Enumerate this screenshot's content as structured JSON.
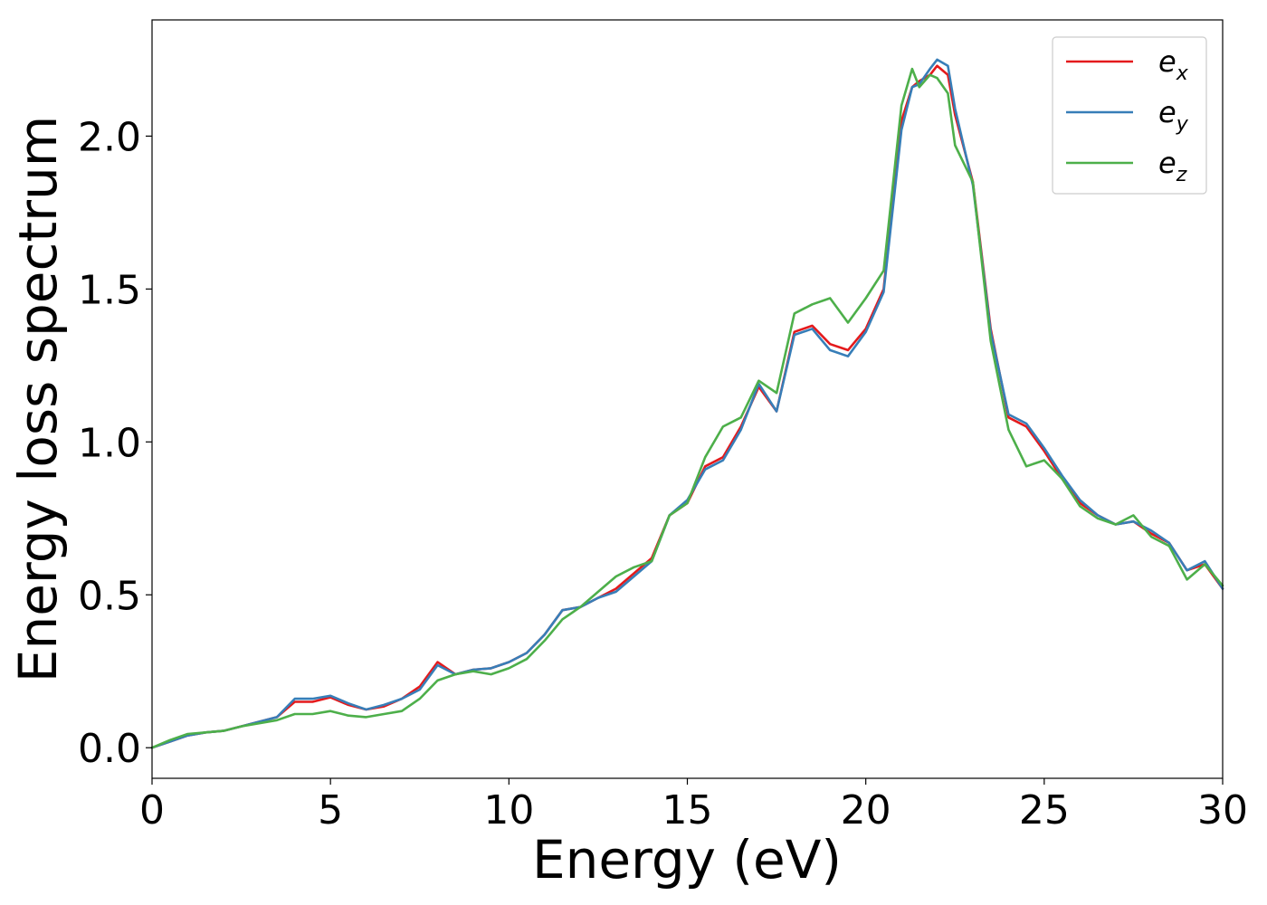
{
  "chart_data": {
    "type": "line",
    "title": "",
    "xlabel": "Energy (eV)",
    "ylabel": "Energy loss spectrum",
    "xlim": [
      0,
      30
    ],
    "ylim": [
      -0.1,
      2.38
    ],
    "xticks": [
      0,
      5,
      10,
      15,
      20,
      25,
      30
    ],
    "xtick_labels": [
      "0",
      "5",
      "10",
      "15",
      "20",
      "25",
      "30"
    ],
    "yticks": [
      0.0,
      0.5,
      1.0,
      1.5,
      2.0
    ],
    "ytick_labels": [
      "0.0",
      "0.5",
      "1.0",
      "1.5",
      "2.0"
    ],
    "grid": false,
    "legend_position": "top-right",
    "x": [
      0,
      0.5,
      1,
      1.5,
      2,
      2.5,
      3,
      3.5,
      4,
      4.5,
      5,
      5.5,
      6,
      6.5,
      7,
      7.5,
      8,
      8.5,
      9,
      9.5,
      10,
      10.5,
      11,
      11.5,
      12,
      12.5,
      13,
      13.5,
      14,
      14.5,
      15,
      15.5,
      16,
      16.5,
      17,
      17.5,
      18,
      18.5,
      19,
      19.5,
      20,
      20.5,
      21,
      21.3,
      21.5,
      21.8,
      22,
      22.3,
      22.5,
      23,
      23.5,
      24,
      24.5,
      25,
      25.5,
      26,
      26.5,
      27,
      27.5,
      28,
      28.5,
      29,
      29.5,
      30
    ],
    "series": [
      {
        "name": "e",
        "subscript": "x",
        "color": "#e41a1c",
        "values": [
          0.0,
          0.02,
          0.04,
          0.05,
          0.055,
          0.07,
          0.085,
          0.1,
          0.15,
          0.15,
          0.165,
          0.14,
          0.125,
          0.135,
          0.16,
          0.2,
          0.28,
          0.24,
          0.255,
          0.26,
          0.28,
          0.31,
          0.37,
          0.45,
          0.46,
          0.49,
          0.52,
          0.57,
          0.62,
          0.76,
          0.8,
          0.92,
          0.95,
          1.05,
          1.18,
          1.1,
          1.36,
          1.38,
          1.32,
          1.3,
          1.37,
          1.5,
          2.05,
          2.16,
          2.18,
          2.2,
          2.23,
          2.2,
          2.07,
          1.85,
          1.37,
          1.08,
          1.05,
          0.97,
          0.88,
          0.8,
          0.76,
          0.73,
          0.74,
          0.7,
          0.67,
          0.58,
          0.6,
          0.52
        ]
      },
      {
        "name": "e",
        "subscript": "y",
        "color": "#377eb8",
        "values": [
          0.0,
          0.02,
          0.04,
          0.05,
          0.055,
          0.07,
          0.085,
          0.1,
          0.16,
          0.16,
          0.17,
          0.145,
          0.125,
          0.14,
          0.16,
          0.19,
          0.27,
          0.24,
          0.255,
          0.26,
          0.28,
          0.31,
          0.37,
          0.45,
          0.46,
          0.49,
          0.51,
          0.56,
          0.61,
          0.76,
          0.81,
          0.91,
          0.94,
          1.04,
          1.19,
          1.1,
          1.35,
          1.37,
          1.3,
          1.28,
          1.36,
          1.49,
          2.02,
          2.16,
          2.17,
          2.22,
          2.25,
          2.23,
          2.09,
          1.84,
          1.36,
          1.09,
          1.06,
          0.98,
          0.89,
          0.81,
          0.76,
          0.73,
          0.74,
          0.71,
          0.67,
          0.58,
          0.61,
          0.52
        ]
      },
      {
        "name": "e",
        "subscript": "z",
        "color": "#4daf4a",
        "values": [
          0.0,
          0.025,
          0.045,
          0.05,
          0.055,
          0.07,
          0.08,
          0.09,
          0.11,
          0.11,
          0.12,
          0.105,
          0.1,
          0.11,
          0.12,
          0.16,
          0.22,
          0.24,
          0.25,
          0.24,
          0.26,
          0.29,
          0.35,
          0.42,
          0.46,
          0.51,
          0.56,
          0.59,
          0.61,
          0.76,
          0.8,
          0.95,
          1.05,
          1.08,
          1.2,
          1.16,
          1.42,
          1.45,
          1.47,
          1.39,
          1.47,
          1.56,
          2.1,
          2.22,
          2.16,
          2.2,
          2.19,
          2.14,
          1.97,
          1.85,
          1.33,
          1.04,
          0.92,
          0.94,
          0.88,
          0.79,
          0.75,
          0.73,
          0.76,
          0.69,
          0.66,
          0.55,
          0.6,
          0.53
        ]
      }
    ]
  }
}
